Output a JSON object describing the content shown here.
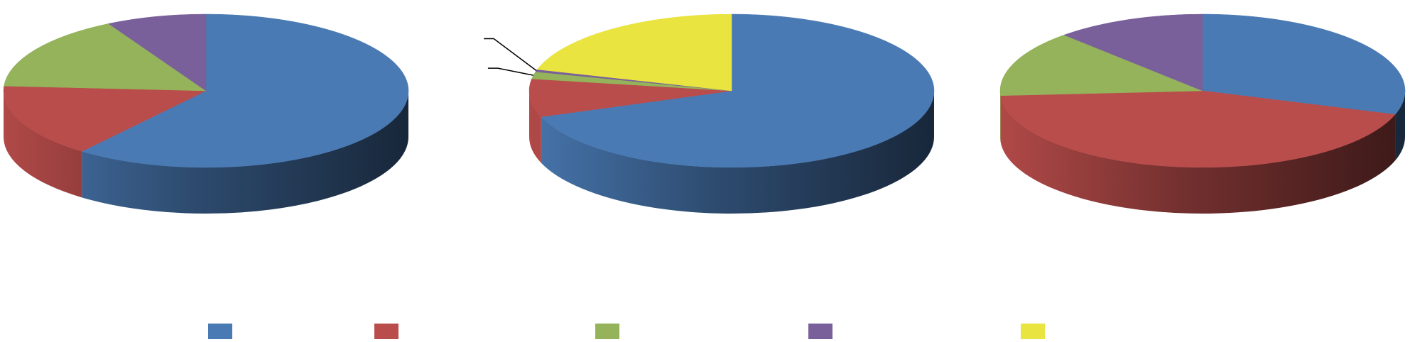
{
  "chart_data": [
    {
      "type": "pie",
      "title": "",
      "slices": [
        {
          "label": "",
          "value": 60.5,
          "color": "#4a7ab4"
        },
        {
          "label": "",
          "value": 15.5,
          "color": "#b94d4b"
        },
        {
          "label": "",
          "value": 16.0,
          "color": "#94b35b"
        },
        {
          "label": "",
          "value": 8.0,
          "color": "#7a609a"
        }
      ]
    },
    {
      "type": "pie",
      "title": "",
      "slices": [
        {
          "label": "",
          "value": 69.5,
          "color": "#4a7ab4"
        },
        {
          "label": "",
          "value": 8.0,
          "color": "#b94d4b"
        },
        {
          "label": "",
          "value": 1.5,
          "color": "#94b35b"
        },
        {
          "label": "",
          "value": 0.5,
          "color": "#7a609a"
        },
        {
          "label": "",
          "value": 20.5,
          "color": "#e9e43f"
        }
      ],
      "leader_lines_for_slices": [
        2,
        3
      ]
    },
    {
      "type": "pie",
      "title": "",
      "slices": [
        {
          "label": "",
          "value": 30.0,
          "color": "#4a7ab4"
        },
        {
          "label": "",
          "value": 44.0,
          "color": "#b94d4b"
        },
        {
          "label": "",
          "value": 14.0,
          "color": "#94b35b"
        },
        {
          "label": "",
          "value": 12.0,
          "color": "#7a609a"
        }
      ]
    }
  ],
  "legend": {
    "placement": "bottom",
    "entries": [
      {
        "label": "",
        "color": "#4a7ab4"
      },
      {
        "label": "",
        "color": "#b94d4b"
      },
      {
        "label": "",
        "color": "#94b35b"
      },
      {
        "label": "",
        "color": "#7a609a"
      },
      {
        "label": "",
        "color": "#e9e43f"
      }
    ]
  }
}
